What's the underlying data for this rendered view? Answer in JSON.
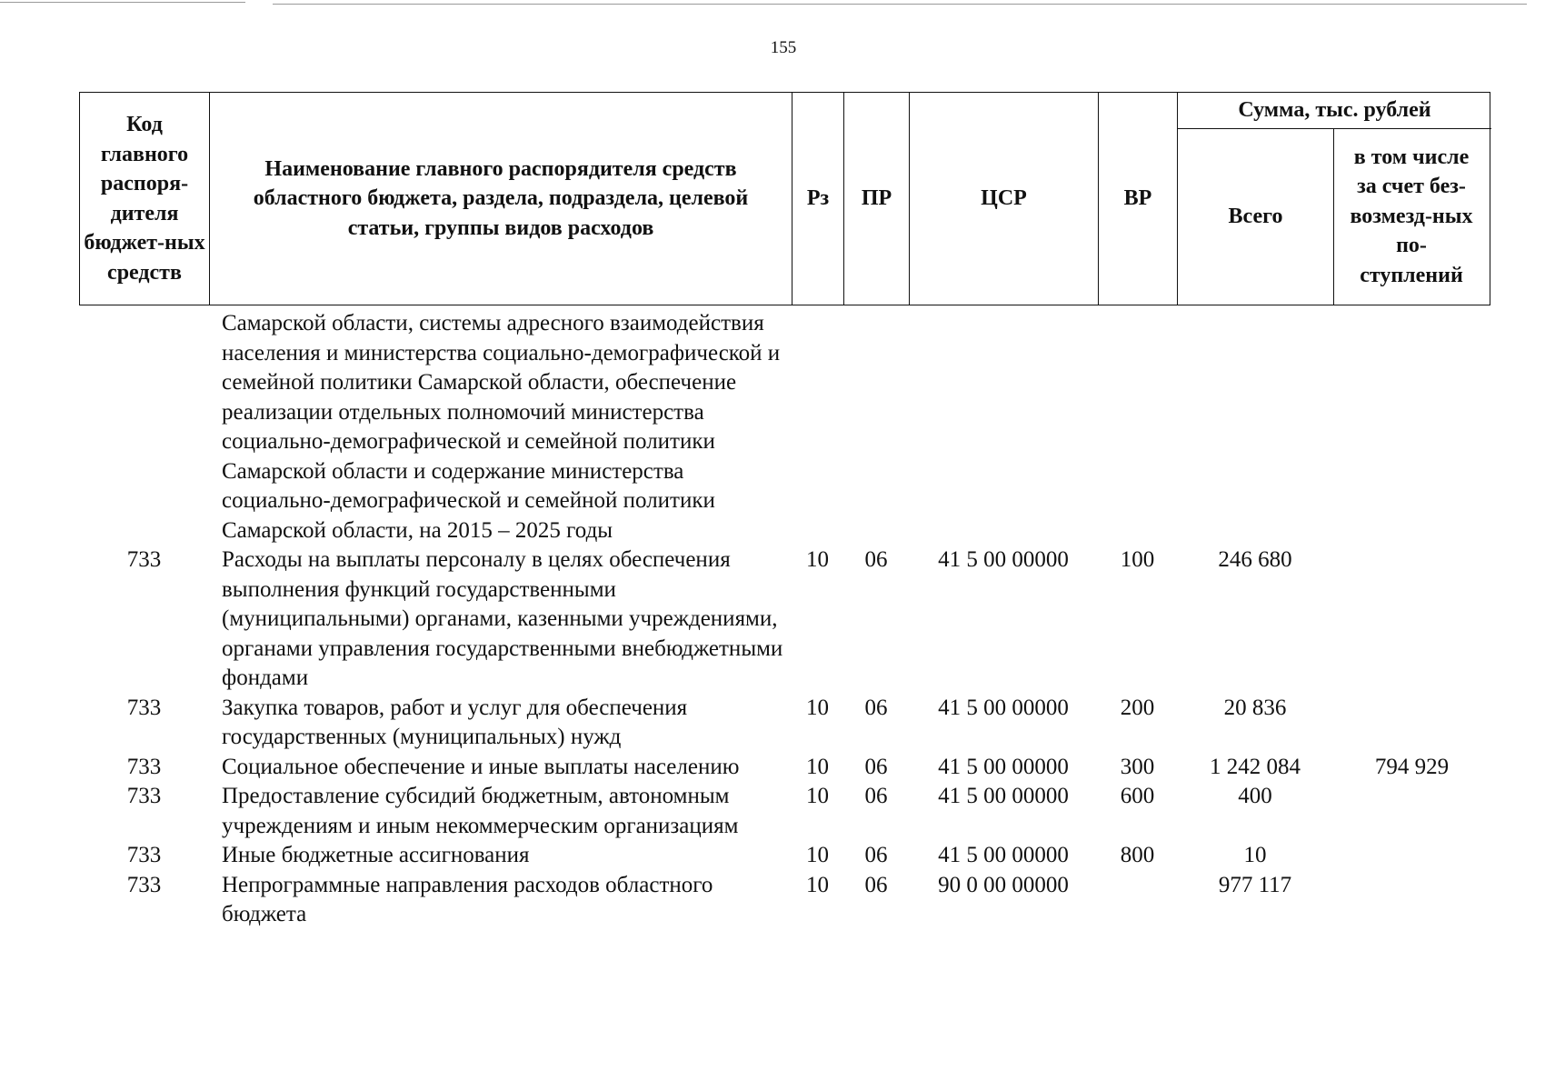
{
  "page_number": "155",
  "header": {
    "col_code": "Код главного распоря-дителя бюджет-ных средств",
    "col_name": "Наименование главного распорядителя средств областного бюджета, раздела, подраздела, целевой статьи, группы видов расходов",
    "col_rz": "Рз",
    "col_pr": "ПР",
    "col_csr": "ЦСР",
    "col_vr": "ВР",
    "col_sum": "Сумма, тыс. рублей",
    "col_total": "Всего",
    "col_gratuitous": "в том числе за счет без-возмезд-ных по-ступлений"
  },
  "rows": [
    {
      "code": "",
      "name": "Самарской области, системы адресного взаимодействия населения и министерства социально-демографической и семейной политики Самарской области, обеспечение реализации отдельных полномочий министерства социально-демографической и семейной политики Самарской области и содержание министерства социально-демографической и семейной политики Самарской области, на 2015 – 2025 годы",
      "rz": "",
      "pr": "",
      "csr": "",
      "vr": "",
      "total": "",
      "gratuitous": ""
    },
    {
      "code": "733",
      "name": "Расходы на выплаты персоналу в целях обеспечения выполнения функций государственными (муниципальными) органами, казенными учреждениями, органами управления государственными внебюджетными фондами",
      "rz": "10",
      "pr": "06",
      "csr": "41 5 00 00000",
      "vr": "100",
      "total": "246 680",
      "gratuitous": ""
    },
    {
      "code": "733",
      "name": "Закупка товаров, работ и услуг для обеспечения государственных (муниципальных) нужд",
      "rz": "10",
      "pr": "06",
      "csr": "41 5 00 00000",
      "vr": "200",
      "total": "20 836",
      "gratuitous": ""
    },
    {
      "code": "733",
      "name": "Социальное обеспечение и иные выплаты населению",
      "rz": "10",
      "pr": "06",
      "csr": "41 5 00 00000",
      "vr": "300",
      "total": "1 242 084",
      "gratuitous": "794 929"
    },
    {
      "code": "733",
      "name": "Предоставление субсидий бюджетным, автономным учреждениям и иным некоммерческим организациям",
      "rz": "10",
      "pr": "06",
      "csr": "41 5 00 00000",
      "vr": "600",
      "total": "400",
      "gratuitous": ""
    },
    {
      "code": "733",
      "name": "Иные бюджетные ассигнования",
      "rz": "10",
      "pr": "06",
      "csr": "41 5 00 00000",
      "vr": "800",
      "total": "10",
      "gratuitous": ""
    },
    {
      "code": "733",
      "name": "Непрограммные направления расходов областного бюджета",
      "rz": "10",
      "pr": "06",
      "csr": "90 0 00 00000",
      "vr": "",
      "total": "977 117",
      "gratuitous": ""
    }
  ]
}
